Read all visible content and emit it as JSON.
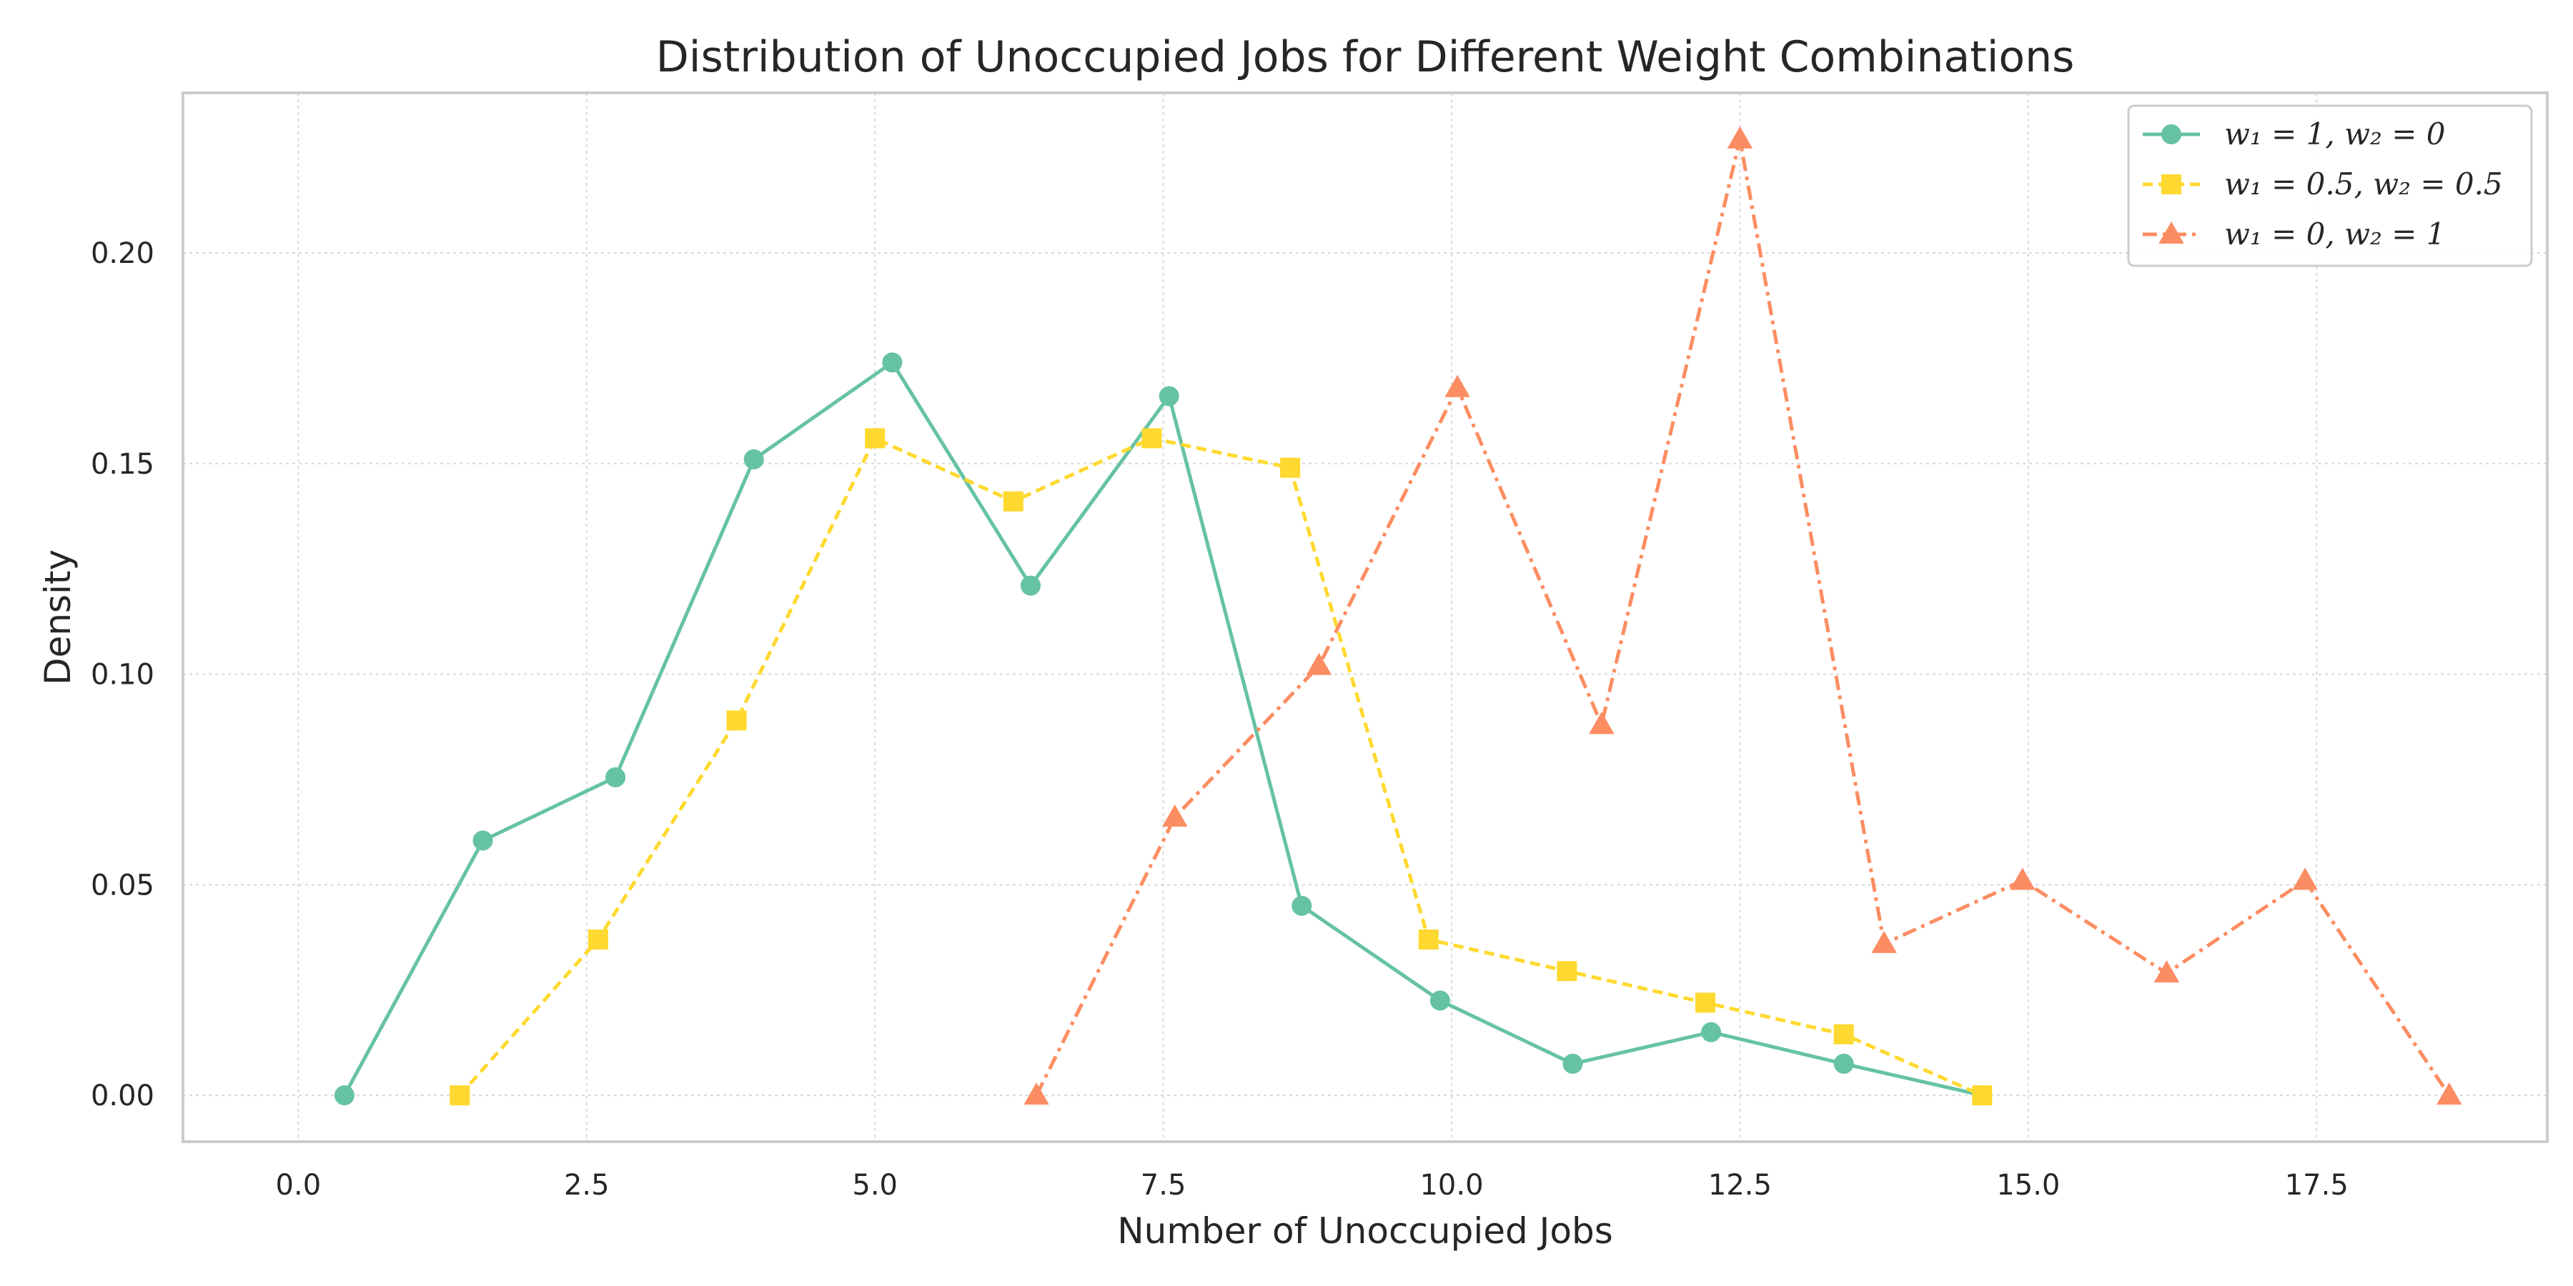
{
  "chart_data": {
    "type": "line",
    "title": "Distribution of Unoccupied Jobs for Different Weight Combinations",
    "xlabel": "Number of Unoccupied Jobs",
    "ylabel": "Density",
    "xlim": [
      -1.0,
      19.5
    ],
    "ylim": [
      -0.011,
      0.238
    ],
    "xticks": [
      0.0,
      2.5,
      5.0,
      7.5,
      10.0,
      12.5,
      15.0,
      17.5
    ],
    "xtick_labels": [
      "0.0",
      "2.5",
      "5.0",
      "7.5",
      "10.0",
      "12.5",
      "15.0",
      "17.5"
    ],
    "yticks": [
      0.0,
      0.05,
      0.1,
      0.15,
      0.2
    ],
    "ytick_labels": [
      "0.00",
      "0.05",
      "0.10",
      "0.15",
      "0.20"
    ],
    "grid": true,
    "legend_position": "top-right",
    "series": [
      {
        "name": "w₁ = 1, w₂ = 0",
        "color": "#66c2a5",
        "marker": "circle",
        "linestyle": "solid",
        "x": [
          0.4,
          1.6,
          2.75,
          3.95,
          5.15,
          6.35,
          7.55,
          8.7,
          9.9,
          11.05,
          12.25,
          13.4,
          14.6
        ],
        "y": [
          0.0,
          0.0605,
          0.0755,
          0.151,
          0.174,
          0.121,
          0.166,
          0.045,
          0.0225,
          0.0075,
          0.015,
          0.0075,
          0.0
        ]
      },
      {
        "name": "w₁ = 0.5, w₂ = 0.5",
        "color": "#ffd92f",
        "marker": "square",
        "linestyle": "dashed",
        "x": [
          1.4,
          2.6,
          3.8,
          5.0,
          6.2,
          7.4,
          8.6,
          9.8,
          11.0,
          12.2,
          13.4,
          14.6
        ],
        "y": [
          0.0,
          0.037,
          0.089,
          0.156,
          0.141,
          0.156,
          0.149,
          0.037,
          0.0295,
          0.022,
          0.0145,
          0.0
        ]
      },
      {
        "name": "w₁ = 0, w₂ = 1",
        "color": "#fc8d62",
        "marker": "triangle",
        "linestyle": "dashdot",
        "x": [
          6.4,
          7.6,
          8.85,
          10.05,
          11.3,
          12.5,
          13.75,
          14.95,
          16.2,
          17.4,
          18.65
        ],
        "y": [
          0.0,
          0.066,
          0.102,
          0.168,
          0.088,
          0.227,
          0.036,
          0.051,
          0.029,
          0.051,
          0.0
        ]
      }
    ]
  }
}
